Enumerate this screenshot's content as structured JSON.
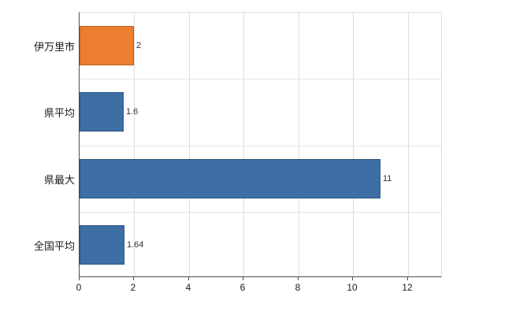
{
  "chart_data": {
    "type": "bar",
    "orientation": "horizontal",
    "title": "",
    "xlabel": "",
    "ylabel": "",
    "categories": [
      "伊万里市",
      "県平均",
      "県最大",
      "全国平均"
    ],
    "values": [
      2,
      1.6,
      11,
      1.64
    ],
    "value_labels": [
      "2",
      "1.6",
      "11",
      "1.64"
    ],
    "series": [
      {
        "name": "",
        "values": [
          2,
          1.6,
          11,
          1.64
        ]
      }
    ],
    "bar_colors": [
      "#ED7D31",
      "#3D6FA5",
      "#3D6FA5",
      "#3D6FA5"
    ],
    "bar_border_colors": [
      "#b65f1f",
      "#2c5480",
      "#2c5480",
      "#2c5480"
    ],
    "xlim": [
      0,
      13.27
    ],
    "x_ticks": [
      0,
      2,
      4,
      6,
      8,
      10,
      12
    ],
    "grid": true,
    "legend": "none",
    "background": "#ffffff"
  }
}
